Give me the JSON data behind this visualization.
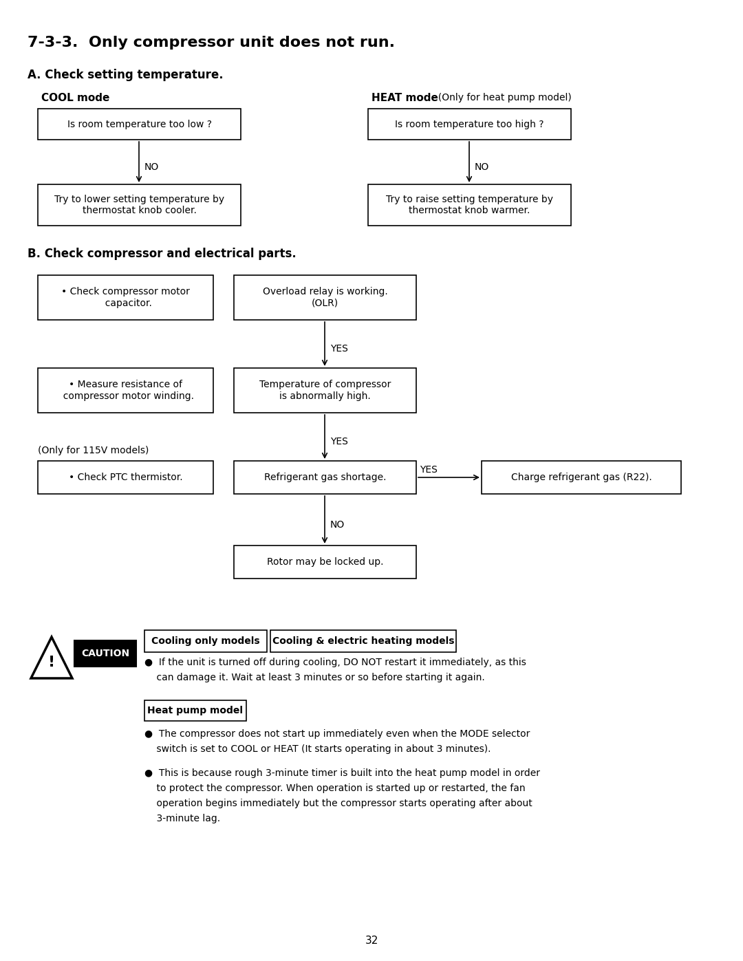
{
  "title": "7-3-3.  Only compressor unit does not run.",
  "section_a": "A. Check setting temperature.",
  "cool_mode_label": "COOL mode",
  "heat_mode_label": "HEAT mode",
  "heat_mode_suffix": "  (Only for heat pump model)",
  "cool_box1": "Is room temperature too low ?",
  "cool_label_no": "NO",
  "cool_box2": "Try to lower setting temperature by\nthermostat knob cooler.",
  "heat_box1": "Is room temperature too high ?",
  "heat_label_no": "NO",
  "heat_box2": "Try to raise setting temperature by\nthermostat knob warmer.",
  "section_b": "B. Check compressor and electrical parts.",
  "left_box1": "• Check compressor motor\n  capacitor.",
  "center_box1": "Overload relay is working.\n(OLR)",
  "label_yes1": "YES",
  "left_box2": "• Measure resistance of\n  compressor motor winding.",
  "center_box2": "Temperature of compressor\nis abnormally high.",
  "label_yes2": "YES",
  "note_115v": "(Only for 115V models)",
  "left_box3": "• Check PTC thermistor.",
  "center_box3": "Refrigerant gas shortage.",
  "label_yes3": "YES",
  "right_box3": "Charge refrigerant gas (R22).",
  "label_no3": "NO",
  "center_box4": "Rotor may be locked up.",
  "caution_label": "CAUTION",
  "cooling_only_label": "Cooling only models",
  "cooling_electric_label": "Cooling & electric heating models",
  "caution_text1": "●  If the unit is turned off during cooling, DO NOT restart it immediately, as this",
  "caution_text2": "    can damage it. Wait at least 3 minutes or so before starting it again.",
  "heat_pump_label": "Heat pump model",
  "bullet1_line1": "●  The compressor does not start up immediately even when the MODE selector",
  "bullet1_line2": "    switch is set to COOL or HEAT (It starts operating in about 3 minutes).",
  "bullet2_line1": "●  This is because rough 3-minute timer is built into the heat pump model in order",
  "bullet2_line2": "    to protect the compressor. When operation is started up or restarted, the fan",
  "bullet2_line3": "    operation begins immediately but the compressor starts operating after about",
  "bullet2_line4": "    3-minute lag.",
  "page_number": "32",
  "bg_color": "#ffffff",
  "text_color": "#000000",
  "box_edge_color": "#000000"
}
